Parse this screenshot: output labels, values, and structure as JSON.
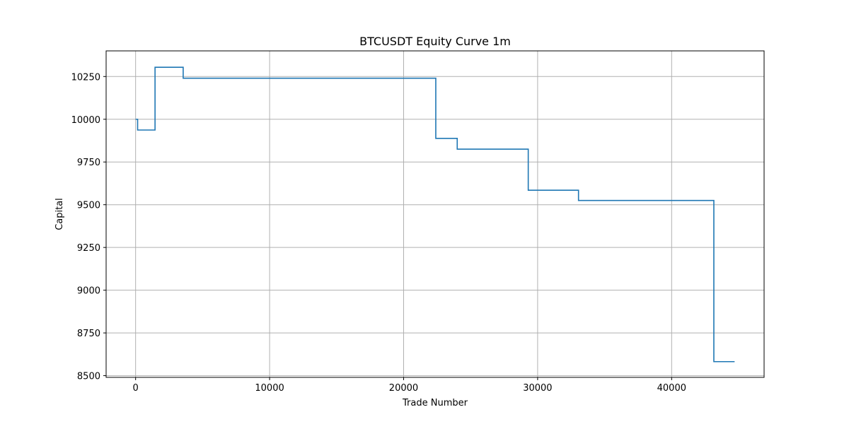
{
  "chart_data": {
    "type": "line",
    "title": "BTCUSDT Equity Curve 1m",
    "xlabel": "Trade Number",
    "ylabel": "Capital",
    "xlim": [
      -2200,
      46900
    ],
    "ylim": [
      8490,
      10400
    ],
    "x_ticks": [
      0,
      10000,
      20000,
      30000,
      40000
    ],
    "y_ticks": [
      8500,
      8750,
      9000,
      9250,
      9500,
      9750,
      10000,
      10250
    ],
    "grid": true,
    "line_color": "#1f77b4",
    "grid_color": "#b0b0b0",
    "series": [
      {
        "step": "post",
        "points": [
          [
            0,
            10000
          ],
          [
            150,
            9937
          ],
          [
            1450,
            10304
          ],
          [
            3550,
            10240
          ],
          [
            22400,
            9888
          ],
          [
            24000,
            9825
          ],
          [
            29300,
            9585
          ],
          [
            33050,
            9525
          ],
          [
            43150,
            8582
          ],
          [
            44700,
            8582
          ]
        ]
      }
    ]
  }
}
